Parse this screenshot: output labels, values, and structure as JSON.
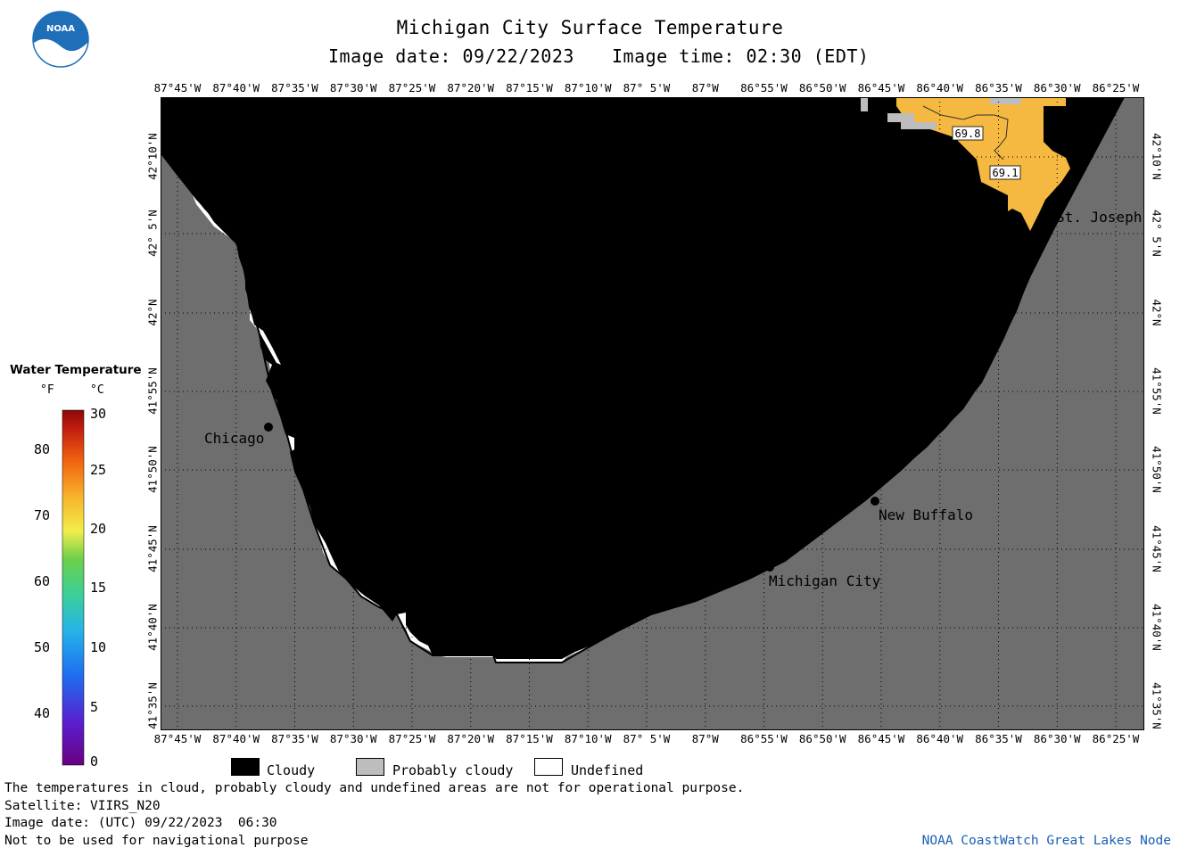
{
  "header": {
    "title": "Michigan City Surface Temperature",
    "image_date": "Image date: 09/22/2023",
    "image_time": "Image time: 02:30 (EDT)"
  },
  "logo": {
    "text": "NOAA",
    "color": "#1f6fb8"
  },
  "map": {
    "lon_labels": [
      "87°45'W",
      "87°40'W",
      "87°35'W",
      "87°30'W",
      "87°25'W",
      "87°20'W",
      "87°15'W",
      "87°10'W",
      "87° 5'W",
      "87°W",
      "86°55'W",
      "86°50'W",
      "86°45'W",
      "86°40'W",
      "86°35'W",
      "86°30'W",
      "86°25'W"
    ],
    "lat_labels": [
      "42°10'N",
      "42° 5'N",
      "42°N",
      "41°55'N",
      "41°50'N",
      "41°45'N",
      "41°40'N",
      "41°35'N"
    ],
    "cities": [
      {
        "name": "Chicago"
      },
      {
        "name": "St. Joseph"
      },
      {
        "name": "New Buffalo"
      },
      {
        "name": "Michigan City"
      }
    ],
    "temp_labels": [
      "69.8",
      "69.1"
    ],
    "colors": {
      "land": "#6e6e6e",
      "cloud": "#000000",
      "warm": "#f5b840",
      "probably_cloudy": "#bdbdbd"
    }
  },
  "scale": {
    "title": "Water Temperature",
    "unit_f": "°F",
    "unit_c": "°C",
    "f_ticks": [
      "80",
      "70",
      "60",
      "50",
      "40"
    ],
    "c_ticks": [
      "30",
      "25",
      "20",
      "15",
      "10",
      "5",
      "0"
    ]
  },
  "legend": {
    "cloudy": "Cloudy",
    "probably_cloudy": "Probably cloudy",
    "undefined": "Undefined"
  },
  "footer": {
    "disclaimer": "The temperatures in cloud, probably cloudy and undefined areas are not for operational purpose.",
    "satellite": "Satellite: VIIRS_N20",
    "image_date_utc": "Image date: (UTC) 09/22/2023  06:30",
    "nav_warning": "Not to be used for navigational purpose",
    "credit": "NOAA CoastWatch Great Lakes Node"
  }
}
